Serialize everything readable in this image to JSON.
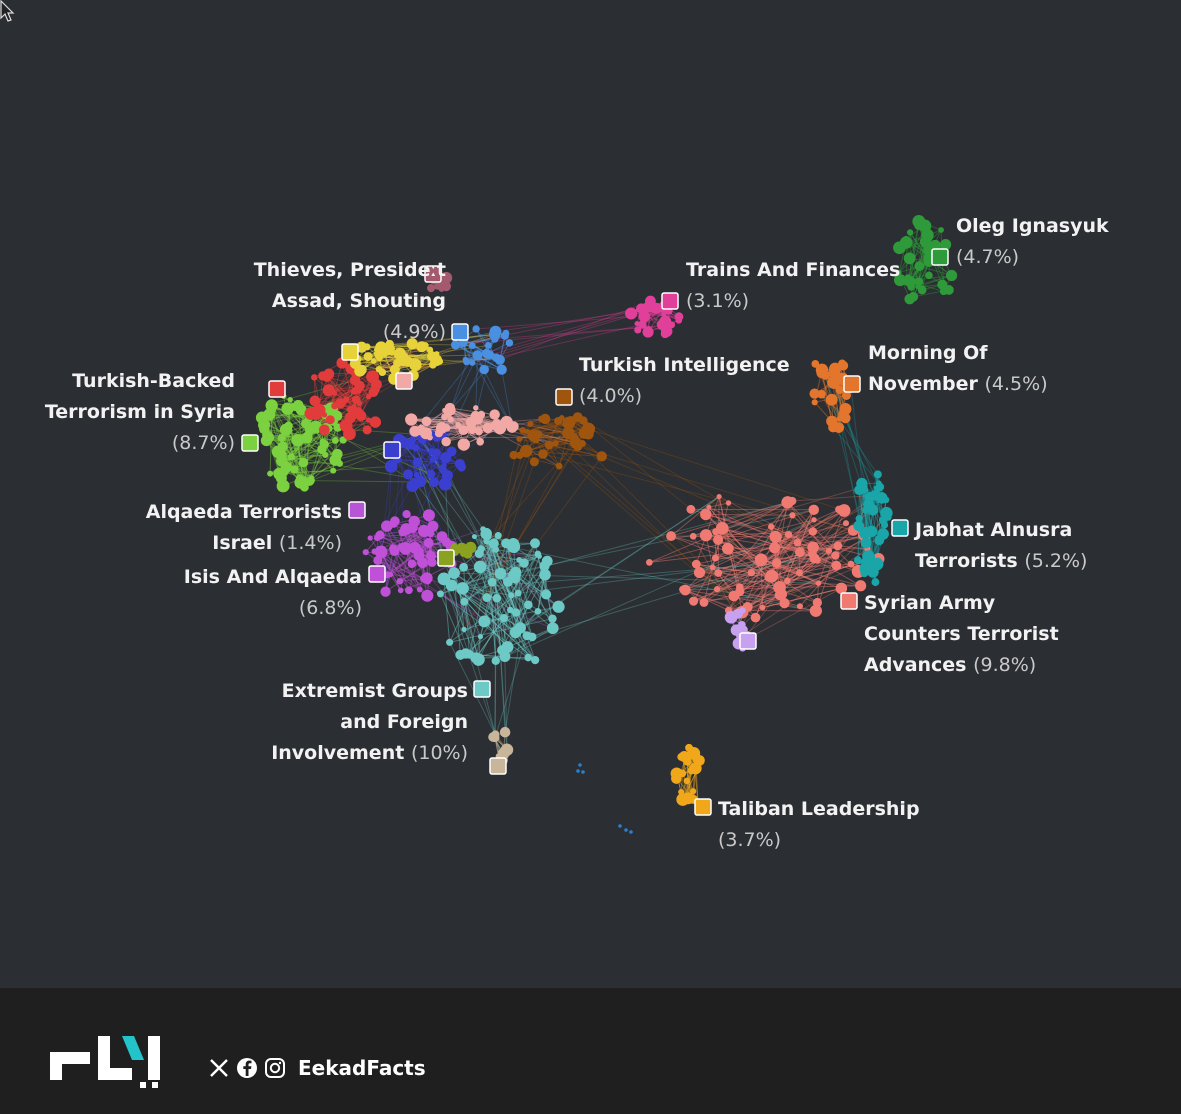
{
  "clusters": [
    {
      "id": "thieves",
      "line1": "Thieves, Presideːt",
      "line2": "Assad, Shouting",
      "pct": "(4.9%)",
      "color": "#e8d23a"
    },
    {
      "id": "turkish_backed",
      "line1": "Turkish-Backed",
      "line2": "Terrorism in Syria",
      "pct": "(8.7%)",
      "color": "#7bd13f"
    },
    {
      "id": "alqaeda_israel",
      "line1": "Alqaeda Terrorists",
      "line2": "Israel",
      "pct": "(1.4%)",
      "color": "#b656d6"
    },
    {
      "id": "isis",
      "line1": "Isis And Alqaeda",
      "line2": "",
      "pct": "(6.8%)",
      "color": "#c050d8"
    },
    {
      "id": "extremist",
      "line1": "Extremist Groups",
      "line2": "and Foreign",
      "line3": "Involvement",
      "pct": "(10%)",
      "color": "#6cc9c6"
    },
    {
      "id": "trains",
      "line1": "Trains And Finances",
      "line2": "",
      "pct": "(3.1%)",
      "color": "#e0409a"
    },
    {
      "id": "turkish_intel",
      "line1": "Turkish Intelligence",
      "line2": "",
      "pct": "(4.0%)",
      "color": "#a0550f"
    },
    {
      "id": "oleg",
      "line1": "Oleg Ignasyuk",
      "line2": "",
      "pct": "(4.7%)",
      "color": "#2f9a3a"
    },
    {
      "id": "morning",
      "line1": "Morning Of",
      "line2": "November",
      "pct": "(4.5%)",
      "color": "#e4752c"
    },
    {
      "id": "jabhat",
      "line1": "Jabhat Alnusra",
      "line2": "Terrorists",
      "pct": "(5.2%)",
      "color": "#1aa5a9"
    },
    {
      "id": "syrian_army",
      "line1": "Syrian Army",
      "line2": "Counters Terrorist",
      "line3": "Advances",
      "pct": "(9.8%)",
      "color": "#f07a72"
    },
    {
      "id": "taliban",
      "line1": "Taliban Leadership",
      "line2": "",
      "pct": "(3.7%)",
      "color": "#f0a81a"
    }
  ],
  "footer": {
    "brand": "إيكاد",
    "handle": "EekadFacts",
    "icons": [
      "x-icon",
      "facebook-icon",
      "instagram-icon"
    ]
  }
}
